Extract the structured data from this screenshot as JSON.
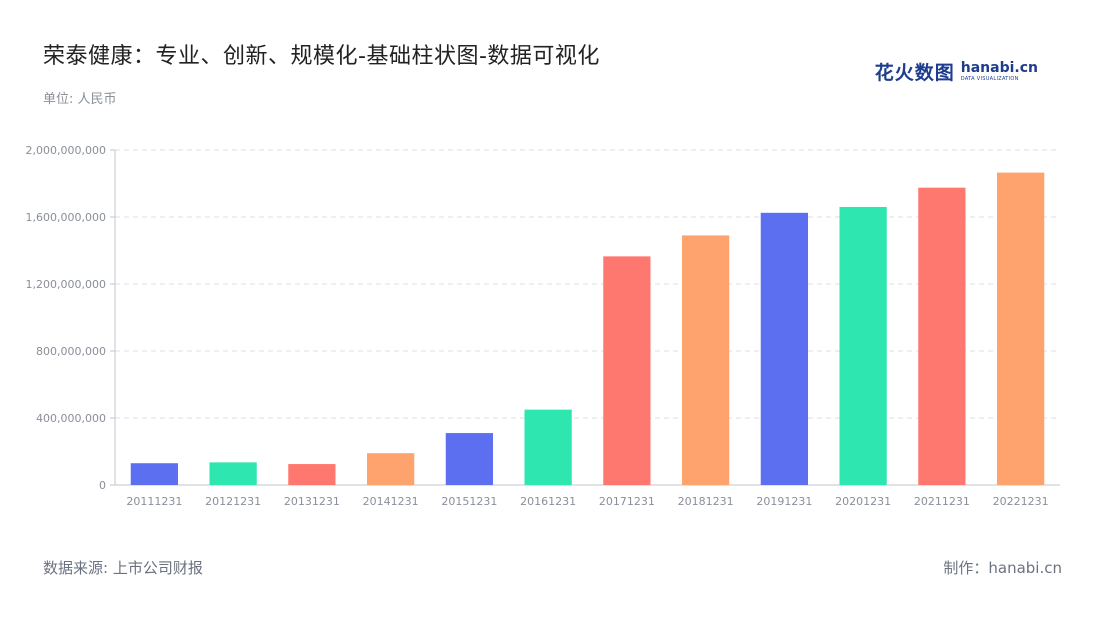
{
  "header": {
    "title": "荣泰健康：专业、创新、规模化-基础柱状图-数据可视化",
    "unit": "单位: 人民币"
  },
  "logo": {
    "cn": "花火数图",
    "en": "hanabi.cn",
    "sub": "DATA VISUALIZATION",
    "color": "#1e3d8f"
  },
  "footer": {
    "source": "数据来源: 上市公司财报",
    "credit": "制作：hanabi.cn"
  },
  "chart_data": {
    "type": "bar",
    "categories": [
      "20111231",
      "20121231",
      "20131231",
      "20141231",
      "20151231",
      "20161231",
      "20171231",
      "20181231",
      "20191231",
      "20201231",
      "20211231",
      "20221231"
    ],
    "values": [
      130000000,
      135000000,
      125000000,
      190000000,
      310000000,
      450000000,
      1365000000,
      1490000000,
      1625000000,
      1660000000,
      1775000000,
      1865000000
    ],
    "colors": [
      "#5b6ff0",
      "#2ee6b0",
      "#ff7870",
      "#ffa36e",
      "#5b6ff0",
      "#2ee6b0",
      "#ff7870",
      "#ffa36e",
      "#5b6ff0",
      "#2ee6b0",
      "#ff7870",
      "#ffa36e"
    ],
    "yticks": [
      "0",
      "400,000,000",
      "800,000,000",
      "1,200,000,000",
      "1,600,000,000",
      "2,000,000,000"
    ],
    "ylim": [
      0,
      2000000000
    ],
    "grid": true,
    "xlabel": "",
    "ylabel": ""
  }
}
